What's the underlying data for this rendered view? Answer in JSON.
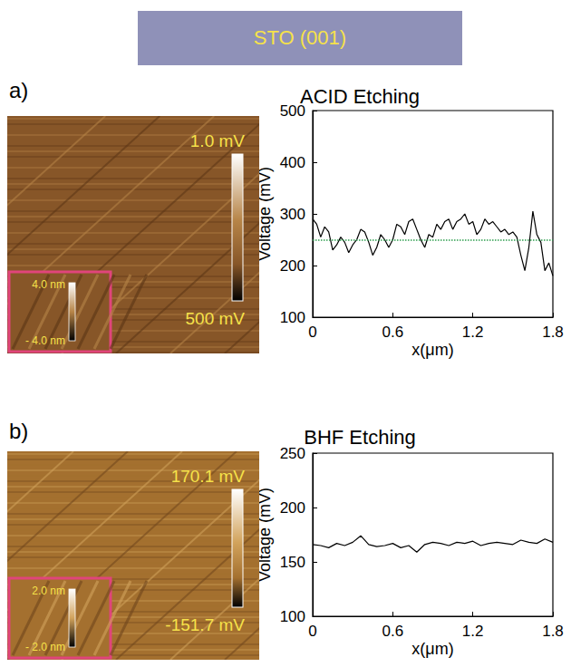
{
  "header": {
    "title": "STO (001)"
  },
  "panels": [
    {
      "letter": "a)",
      "image": {
        "colorbar": {
          "top_label": "1.0 mV",
          "bottom_label": "500 mV"
        },
        "inset": {
          "top_label": "4.0 nm",
          "bottom_label": "- 4.0 nm"
        }
      }
    },
    {
      "letter": "b)",
      "image": {
        "colorbar": {
          "top_label": "170.1 mV",
          "bottom_label": "-151.7 mV"
        },
        "inset": {
          "top_label": "2.0 nm",
          "bottom_label": "- 2.0 nm"
        }
      }
    }
  ],
  "chart_data": [
    {
      "type": "line",
      "title": "ACID Etching",
      "x_label": "x(μm)",
      "y_label": "Voltage (mV)",
      "color": "#000000",
      "x": [
        0,
        0.03,
        0.06,
        0.09,
        0.12,
        0.15,
        0.18,
        0.21,
        0.24,
        0.27,
        0.3,
        0.33,
        0.36,
        0.39,
        0.42,
        0.45,
        0.48,
        0.51,
        0.54,
        0.57,
        0.6,
        0.63,
        0.66,
        0.69,
        0.72,
        0.75,
        0.78,
        0.81,
        0.84,
        0.87,
        0.9,
        0.93,
        0.96,
        0.99,
        1.02,
        1.05,
        1.08,
        1.11,
        1.14,
        1.17,
        1.2,
        1.23,
        1.26,
        1.29,
        1.32,
        1.35,
        1.38,
        1.41,
        1.44,
        1.47,
        1.5,
        1.53,
        1.56,
        1.59,
        1.62,
        1.65,
        1.68,
        1.71,
        1.74,
        1.77,
        1.8
      ],
      "values": [
        290,
        280,
        255,
        275,
        265,
        230,
        240,
        255,
        245,
        225,
        240,
        250,
        270,
        265,
        245,
        220,
        235,
        260,
        250,
        235,
        250,
        280,
        275,
        260,
        285,
        290,
        270,
        250,
        235,
        260,
        255,
        280,
        270,
        285,
        290,
        270,
        285,
        290,
        300,
        280,
        285,
        260,
        270,
        290,
        280,
        285,
        275,
        265,
        270,
        260,
        265,
        255,
        220,
        190,
        235,
        305,
        260,
        245,
        190,
        205,
        180
      ],
      "xlim": [
        0,
        1.8
      ],
      "xticks": [
        0,
        0.6,
        1.2,
        1.8
      ],
      "ylim": [
        100,
        500
      ],
      "yticks": [
        100,
        200,
        300,
        400,
        500
      ],
      "annotations": [
        {
          "type": "hline",
          "value": 250,
          "color": "#2e9e4f",
          "line_style": "dotted"
        }
      ]
    },
    {
      "type": "line",
      "title": "BHF Etching",
      "x_label": "x(μm)",
      "y_label": "Voltage (mV)",
      "color": "#000000",
      "x": [
        0,
        0.06,
        0.12,
        0.18,
        0.24,
        0.3,
        0.36,
        0.42,
        0.48,
        0.54,
        0.6,
        0.66,
        0.72,
        0.78,
        0.84,
        0.9,
        0.96,
        1.02,
        1.08,
        1.14,
        1.2,
        1.26,
        1.32,
        1.38,
        1.44,
        1.5,
        1.56,
        1.62,
        1.68,
        1.74,
        1.8
      ],
      "values": [
        166,
        165,
        163,
        167,
        165,
        168,
        174,
        166,
        164,
        165,
        167,
        163,
        165,
        159,
        166,
        168,
        167,
        165,
        168,
        167,
        169,
        165,
        167,
        168,
        167,
        166,
        170,
        168,
        167,
        171,
        168
      ],
      "xlim": [
        0,
        1.8
      ],
      "xticks": [
        0,
        0.6,
        1.2,
        1.8
      ],
      "ylim": [
        100,
        250
      ],
      "yticks": [
        100,
        150,
        200,
        250
      ]
    }
  ]
}
